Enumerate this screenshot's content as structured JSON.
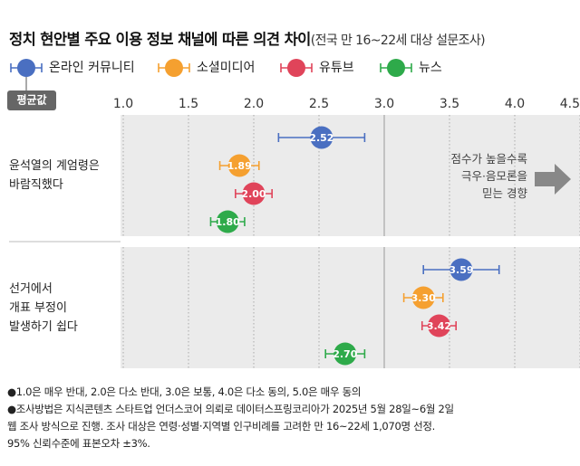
{
  "chart_data": {
    "type": "dot",
    "title": "정치 현안별 주요 이용 정보 채널에 따른 의견 차이",
    "subtitle": "(전국 만 16~22세 대상 설문조사)",
    "legend_note": "평균값",
    "categories": [
      "윤석열의 계엄령은\n바람직했다",
      "선거에서\n개표 부정이\n발생하기 쉽다"
    ],
    "series": [
      {
        "name": "온라인 커뮤니티",
        "color": "#4a6fc1",
        "values": [
          2.52,
          3.59
        ],
        "value_labels": [
          "2.52",
          "3.59"
        ],
        "errors": [
          0.33,
          0.29
        ]
      },
      {
        "name": "소셜미디어",
        "color": "#f5a030",
        "values": [
          1.89,
          3.3
        ],
        "value_labels": [
          "1.89",
          "3.30"
        ],
        "errors": [
          0.15,
          0.15
        ]
      },
      {
        "name": "유튜브",
        "color": "#e0445a",
        "values": [
          2.0,
          3.42
        ],
        "value_labels": [
          "2.00",
          "3.42"
        ],
        "errors": [
          0.14,
          0.13
        ]
      },
      {
        "name": "뉴스",
        "color": "#2eaa4a",
        "values": [
          1.8,
          2.7
        ],
        "value_labels": [
          "1.80",
          "2.70"
        ],
        "errors": [
          0.13,
          0.15
        ]
      }
    ],
    "xlim": [
      1.0,
      4.5
    ],
    "xticks": [
      {
        "value": 1.0,
        "label": "1.0"
      },
      1.5,
      {
        "value": 2.0,
        "label": "2.0"
      },
      2.5,
      {
        "value": 3.0,
        "label": "3.0"
      },
      3.5,
      {
        "value": 4.0,
        "label": "4.0"
      },
      4.5
    ],
    "grid": true,
    "annotation": "점수가 높을수록\n극우·음모론을\n믿는 경향",
    "notes": [
      "●1.0은 매우 반대, 2.0은 다소 반대, 3.0은 보통, 4.0은 다소 동의, 5.0은 매우 동의",
      "●조사방법은 지식콘텐츠 스타트업 언더스코어 의뢰로 데이터스프링코리아가 2025년 5월 28일~6월 2일\n   웹 조사 방식으로 진행. 조사 대상은 연령·성별·지역별 인구비례를 고려한 만 16~22세 1,070명 선정.\n   95% 신뢰수준에 표본오차 ±3%."
    ]
  }
}
